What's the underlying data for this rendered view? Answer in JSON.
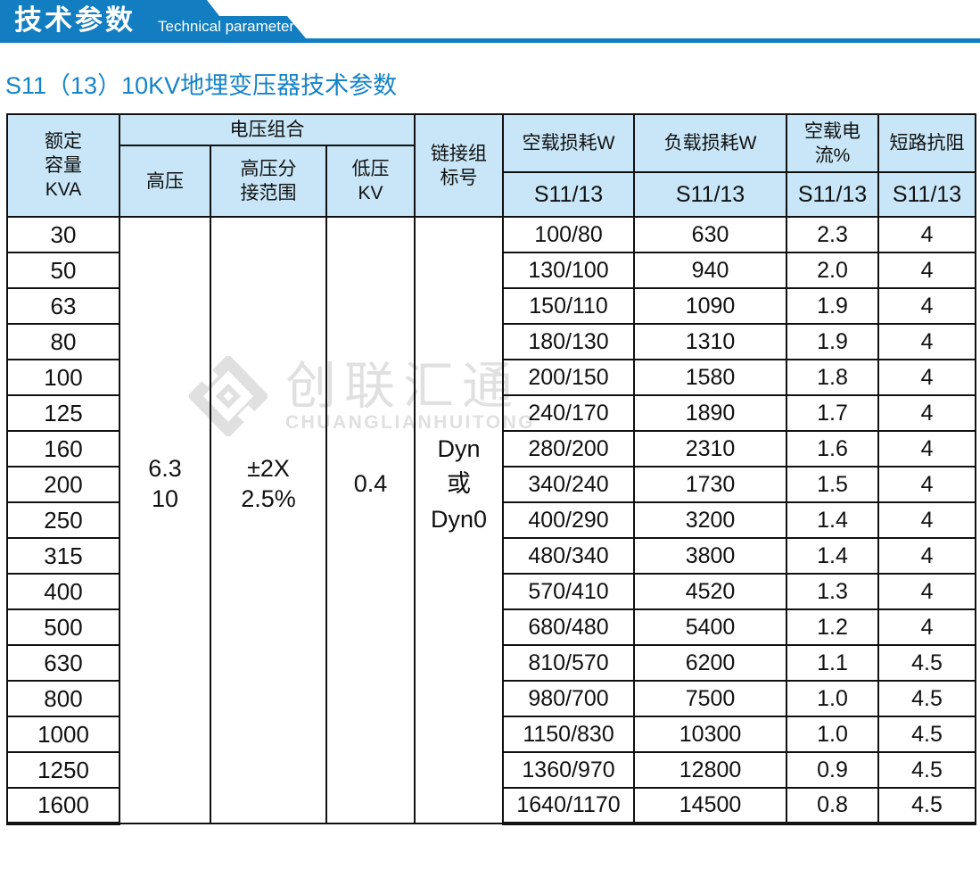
{
  "banner": {
    "title_cn": "技术参数",
    "title_en": "Technical parameter",
    "bg_color": "#127ec1"
  },
  "page_title": "S11（13）10KV地埋变压器技术参数",
  "watermark": {
    "logo_icon": "diamond-logo",
    "name_cn": "创联汇通",
    "name_en": "CHUANGLIANHUITONG",
    "color": "#e0e0e0"
  },
  "table": {
    "colors": {
      "header_bg": "#c8e6f7",
      "border": "#111111"
    },
    "header": {
      "capacity": "额定\n容量\nKVA",
      "voltage_group": "电压组合",
      "hv": "高压",
      "hv_tap_range": "高压分\n接范围",
      "lv": "低压\nKV",
      "vector_group": "链接组\n标号",
      "no_load_loss": "空载损耗W",
      "load_loss": "负载损耗W",
      "no_load_current": "空载电流%",
      "impedance": "短路抗阻",
      "series": "S11/13"
    },
    "merged": {
      "hv": "6.3\n10",
      "hv_tap_range": "±2X\n2.5%",
      "lv": "0.4",
      "vector_group": "Dyn\n或\nDyn0"
    },
    "rows": [
      {
        "capacity": "30",
        "no_load_loss": "100/80",
        "load_loss": "630",
        "no_load_current": "2.3",
        "impedance": "4"
      },
      {
        "capacity": "50",
        "no_load_loss": "130/100",
        "load_loss": "940",
        "no_load_current": "2.0",
        "impedance": "4"
      },
      {
        "capacity": "63",
        "no_load_loss": "150/110",
        "load_loss": "1090",
        "no_load_current": "1.9",
        "impedance": "4"
      },
      {
        "capacity": "80",
        "no_load_loss": "180/130",
        "load_loss": "1310",
        "no_load_current": "1.9",
        "impedance": "4"
      },
      {
        "capacity": "100",
        "no_load_loss": "200/150",
        "load_loss": "1580",
        "no_load_current": "1.8",
        "impedance": "4"
      },
      {
        "capacity": "125",
        "no_load_loss": "240/170",
        "load_loss": "1890",
        "no_load_current": "1.7",
        "impedance": "4"
      },
      {
        "capacity": "160",
        "no_load_loss": "280/200",
        "load_loss": "2310",
        "no_load_current": "1.6",
        "impedance": "4"
      },
      {
        "capacity": "200",
        "no_load_loss": "340/240",
        "load_loss": "1730",
        "no_load_current": "1.5",
        "impedance": "4"
      },
      {
        "capacity": "250",
        "no_load_loss": "400/290",
        "load_loss": "3200",
        "no_load_current": "1.4",
        "impedance": "4"
      },
      {
        "capacity": "315",
        "no_load_loss": "480/340",
        "load_loss": "3800",
        "no_load_current": "1.4",
        "impedance": "4"
      },
      {
        "capacity": "400",
        "no_load_loss": "570/410",
        "load_loss": "4520",
        "no_load_current": "1.3",
        "impedance": "4"
      },
      {
        "capacity": "500",
        "no_load_loss": "680/480",
        "load_loss": "5400",
        "no_load_current": "1.2",
        "impedance": "4"
      },
      {
        "capacity": "630",
        "no_load_loss": "810/570",
        "load_loss": "6200",
        "no_load_current": "1.1",
        "impedance": "4.5"
      },
      {
        "capacity": "800",
        "no_load_loss": "980/700",
        "load_loss": "7500",
        "no_load_current": "1.0",
        "impedance": "4.5"
      },
      {
        "capacity": "1000",
        "no_load_loss": "1150/830",
        "load_loss": "10300",
        "no_load_current": "1.0",
        "impedance": "4.5"
      },
      {
        "capacity": "1250",
        "no_load_loss": "1360/970",
        "load_loss": "12800",
        "no_load_current": "0.9",
        "impedance": "4.5"
      },
      {
        "capacity": "1600",
        "no_load_loss": "1640/1170",
        "load_loss": "14500",
        "no_load_current": "0.8",
        "impedance": "4.5"
      }
    ]
  }
}
